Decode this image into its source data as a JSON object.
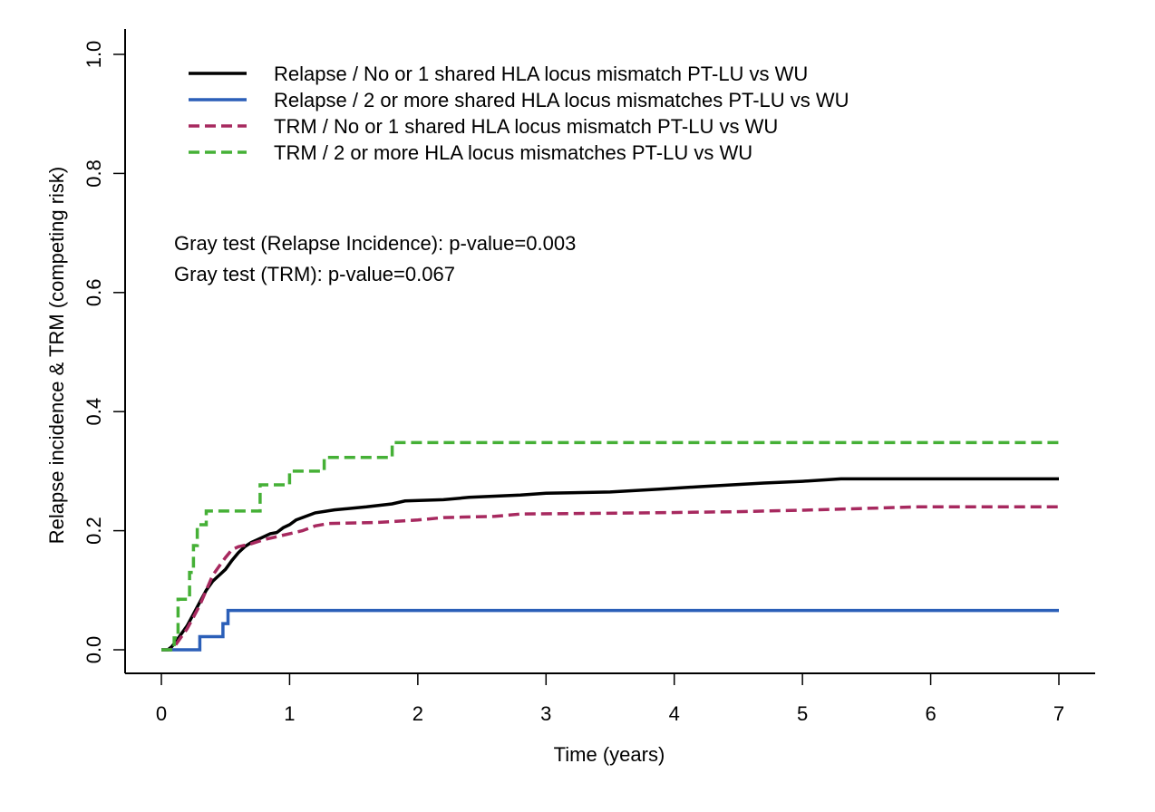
{
  "chart_data": {
    "type": "line",
    "step": true,
    "title": "",
    "xlabel": "Time (years)",
    "ylabel": "Relapse incidence & TRM (competing risk)",
    "xlim": [
      0,
      7
    ],
    "ylim": [
      0,
      1
    ],
    "xticks": [
      0,
      1,
      2,
      3,
      4,
      5,
      6,
      7
    ],
    "xtick_labels": [
      "0",
      "1",
      "2",
      "3",
      "4",
      "5",
      "6",
      "7"
    ],
    "yticks": [
      0,
      0.2,
      0.4,
      0.6,
      0.8,
      1.0
    ],
    "ytick_labels": [
      "0.0",
      "0.2",
      "0.4",
      "0.6",
      "0.8",
      "1.0"
    ],
    "grid": false,
    "legend_position": "top-left",
    "series": [
      {
        "name": "Relapse / No or 1 shared HLA locus mismatch PT-LU vs WU",
        "color": "#000000",
        "dash": "solid",
        "points": [
          [
            0,
            0
          ],
          [
            0.05,
            0
          ],
          [
            0.08,
            0.005
          ],
          [
            0.1,
            0.01
          ],
          [
            0.15,
            0.025
          ],
          [
            0.2,
            0.04
          ],
          [
            0.25,
            0.06
          ],
          [
            0.3,
            0.08
          ],
          [
            0.35,
            0.1
          ],
          [
            0.4,
            0.115
          ],
          [
            0.45,
            0.125
          ],
          [
            0.5,
            0.135
          ],
          [
            0.55,
            0.15
          ],
          [
            0.6,
            0.163
          ],
          [
            0.65,
            0.173
          ],
          [
            0.7,
            0.18
          ],
          [
            0.75,
            0.185
          ],
          [
            0.8,
            0.19
          ],
          [
            0.85,
            0.195
          ],
          [
            0.9,
            0.197
          ],
          [
            0.95,
            0.205
          ],
          [
            1.0,
            0.21
          ],
          [
            1.05,
            0.218
          ],
          [
            1.1,
            0.222
          ],
          [
            1.2,
            0.23
          ],
          [
            1.35,
            0.235
          ],
          [
            1.6,
            0.24
          ],
          [
            1.8,
            0.245
          ],
          [
            1.9,
            0.25
          ],
          [
            2.2,
            0.252
          ],
          [
            2.4,
            0.256
          ],
          [
            2.8,
            0.26
          ],
          [
            3.0,
            0.263
          ],
          [
            3.5,
            0.265
          ],
          [
            3.9,
            0.27
          ],
          [
            4.2,
            0.274
          ],
          [
            4.7,
            0.28
          ],
          [
            5.0,
            0.283
          ],
          [
            5.3,
            0.287
          ],
          [
            7,
            0.287
          ]
        ]
      },
      {
        "name": "Relapse / 2 or more shared HLA locus mismatches PT-LU vs WU",
        "color": "#2b5fb8",
        "dash": "solid",
        "points": [
          [
            0,
            0
          ],
          [
            0.3,
            0
          ],
          [
            0.3,
            0.022
          ],
          [
            0.48,
            0.022
          ],
          [
            0.48,
            0.044
          ],
          [
            0.52,
            0.044
          ],
          [
            0.52,
            0.066
          ],
          [
            7,
            0.066
          ]
        ]
      },
      {
        "name": "TRM / No or 1 shared HLA locus mismatch PT-LU vs WU",
        "color": "#a7295f",
        "dash": "dashed",
        "points": [
          [
            0,
            0
          ],
          [
            0.07,
            0
          ],
          [
            0.1,
            0.005
          ],
          [
            0.15,
            0.02
          ],
          [
            0.2,
            0.035
          ],
          [
            0.25,
            0.055
          ],
          [
            0.3,
            0.075
          ],
          [
            0.35,
            0.1
          ],
          [
            0.4,
            0.125
          ],
          [
            0.45,
            0.14
          ],
          [
            0.5,
            0.155
          ],
          [
            0.55,
            0.168
          ],
          [
            0.6,
            0.173
          ],
          [
            0.7,
            0.178
          ],
          [
            0.8,
            0.185
          ],
          [
            0.9,
            0.19
          ],
          [
            1.0,
            0.195
          ],
          [
            1.1,
            0.2
          ],
          [
            1.2,
            0.208
          ],
          [
            1.3,
            0.212
          ],
          [
            1.7,
            0.214
          ],
          [
            2.0,
            0.218
          ],
          [
            2.2,
            0.222
          ],
          [
            2.6,
            0.224
          ],
          [
            2.8,
            0.228
          ],
          [
            3.8,
            0.23
          ],
          [
            4.5,
            0.232
          ],
          [
            5.1,
            0.235
          ],
          [
            5.9,
            0.24
          ],
          [
            7,
            0.24
          ]
        ]
      },
      {
        "name": "TRM / 2 or more HLA locus mismatches PT-LU vs WU",
        "color": "#45b036",
        "dash": "dashed",
        "points": [
          [
            0,
            0
          ],
          [
            0.1,
            0
          ],
          [
            0.1,
            0.02
          ],
          [
            0.13,
            0.02
          ],
          [
            0.13,
            0.085
          ],
          [
            0.22,
            0.085
          ],
          [
            0.22,
            0.13
          ],
          [
            0.25,
            0.13
          ],
          [
            0.25,
            0.175
          ],
          [
            0.28,
            0.175
          ],
          [
            0.28,
            0.21
          ],
          [
            0.35,
            0.21
          ],
          [
            0.35,
            0.233
          ],
          [
            0.77,
            0.233
          ],
          [
            0.77,
            0.277
          ],
          [
            1.0,
            0.277
          ],
          [
            1.0,
            0.3
          ],
          [
            1.27,
            0.3
          ],
          [
            1.27,
            0.323
          ],
          [
            1.8,
            0.323
          ],
          [
            1.8,
            0.348
          ],
          [
            7,
            0.348
          ]
        ]
      }
    ],
    "annotations": [
      "Gray test (Relapse Incidence): p-value=0.003",
      "Gray test (TRM): p-value=0.067"
    ]
  }
}
